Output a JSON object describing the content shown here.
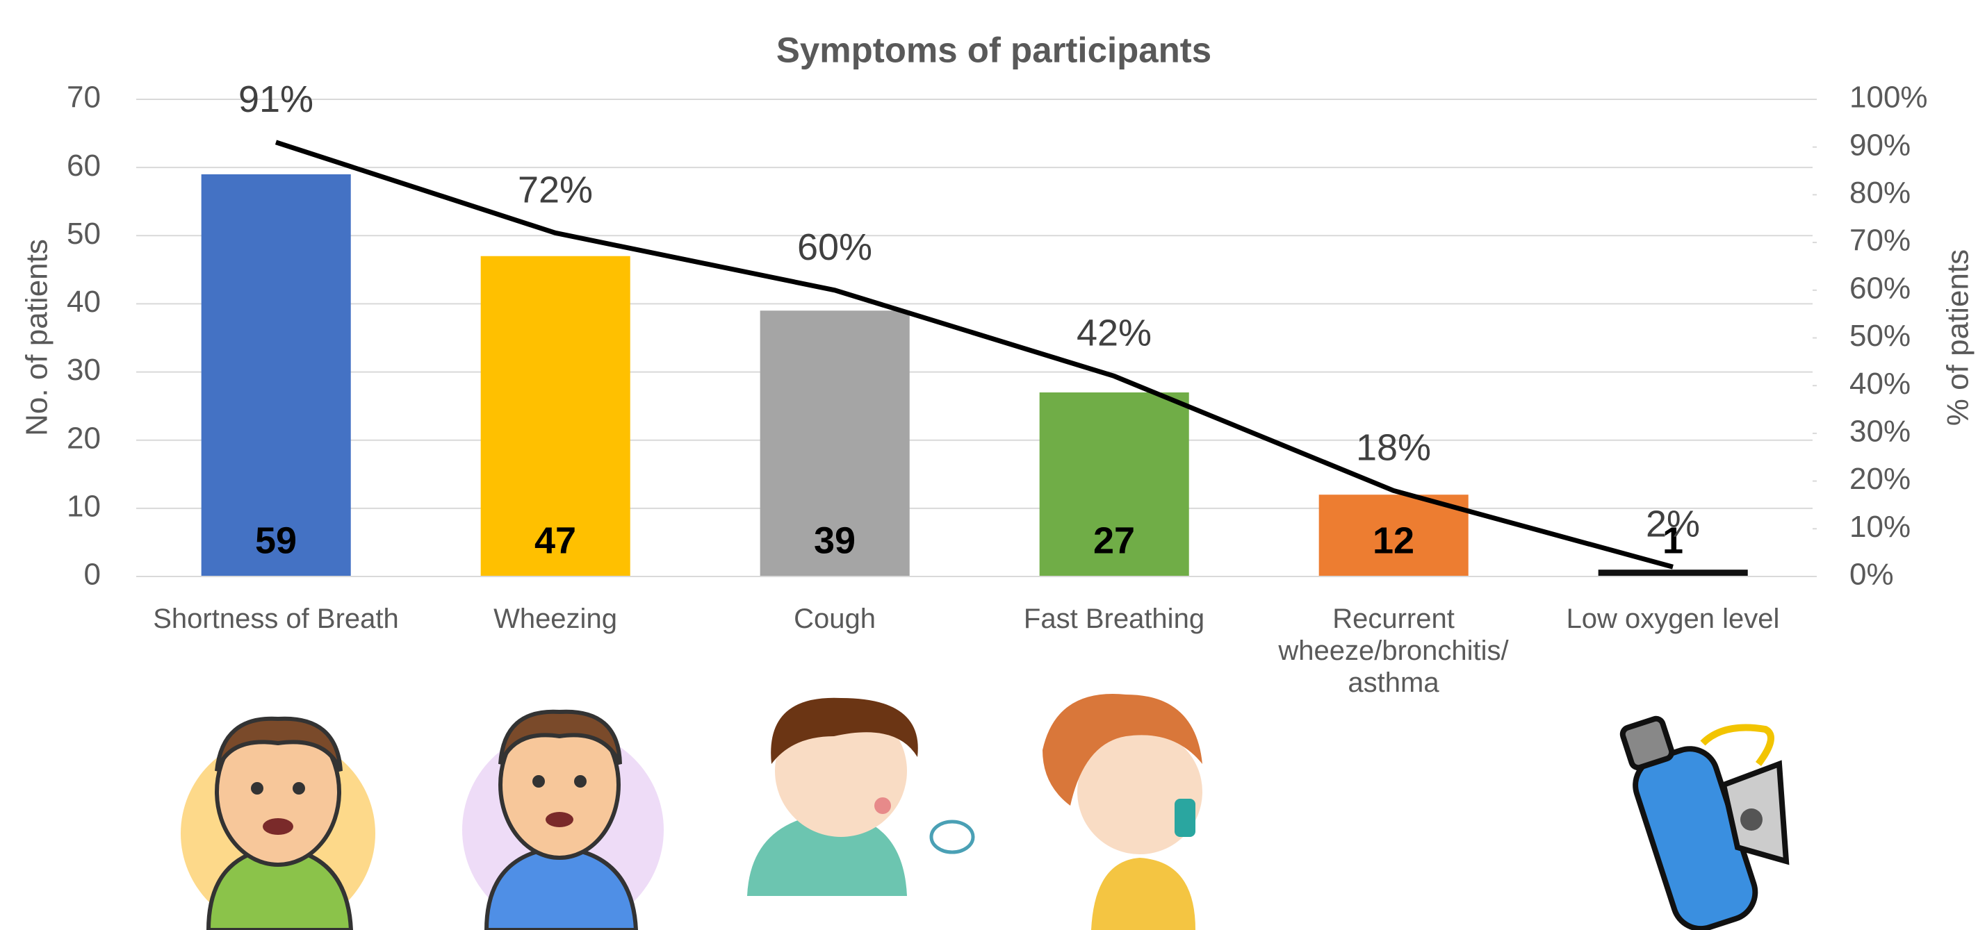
{
  "chart_data": {
    "type": "bar",
    "title": "Symptoms of participants",
    "y_label": "No. of patients",
    "y2_label": "% of patients",
    "categories": [
      "Shortness of Breath",
      "Wheezing",
      "Cough",
      "Fast Breathing",
      "Recurrent wheeze/bronchitis/ asthma",
      "Low oxygen level"
    ],
    "series": [
      {
        "type": "bar",
        "values": [
          59,
          47,
          39,
          27,
          12,
          1
        ],
        "colors": [
          "#4472c4",
          "#ffc000",
          "#a5a5a5",
          "#70ad47",
          "#ed7d31",
          "#111111"
        ]
      },
      {
        "type": "line",
        "axis": "y2",
        "color": "#000000",
        "values": [
          91,
          72,
          60,
          42,
          18,
          2
        ],
        "value_labels": [
          "91%",
          "72%",
          "60%",
          "42%",
          "18%",
          "2%"
        ]
      }
    ],
    "ylim": [
      0,
      70
    ],
    "yticks": [
      0,
      10,
      20,
      30,
      40,
      50,
      60,
      70
    ],
    "y2lim": [
      0,
      100
    ],
    "y2ticks": [
      {
        "value": 0,
        "label": "0%"
      },
      {
        "value": 10,
        "label": "10%"
      },
      {
        "value": 20,
        "label": "20%"
      },
      {
        "value": 30,
        "label": "30%"
      },
      {
        "value": 40,
        "label": "40%"
      },
      {
        "value": 50,
        "label": "50%"
      },
      {
        "value": 60,
        "label": "60%"
      },
      {
        "value": 70,
        "label": "70%"
      },
      {
        "value": 80,
        "label": "80%"
      },
      {
        "value": 90,
        "label": "90%"
      },
      {
        "value": 100,
        "label": "100%"
      }
    ],
    "grid": true
  }
}
